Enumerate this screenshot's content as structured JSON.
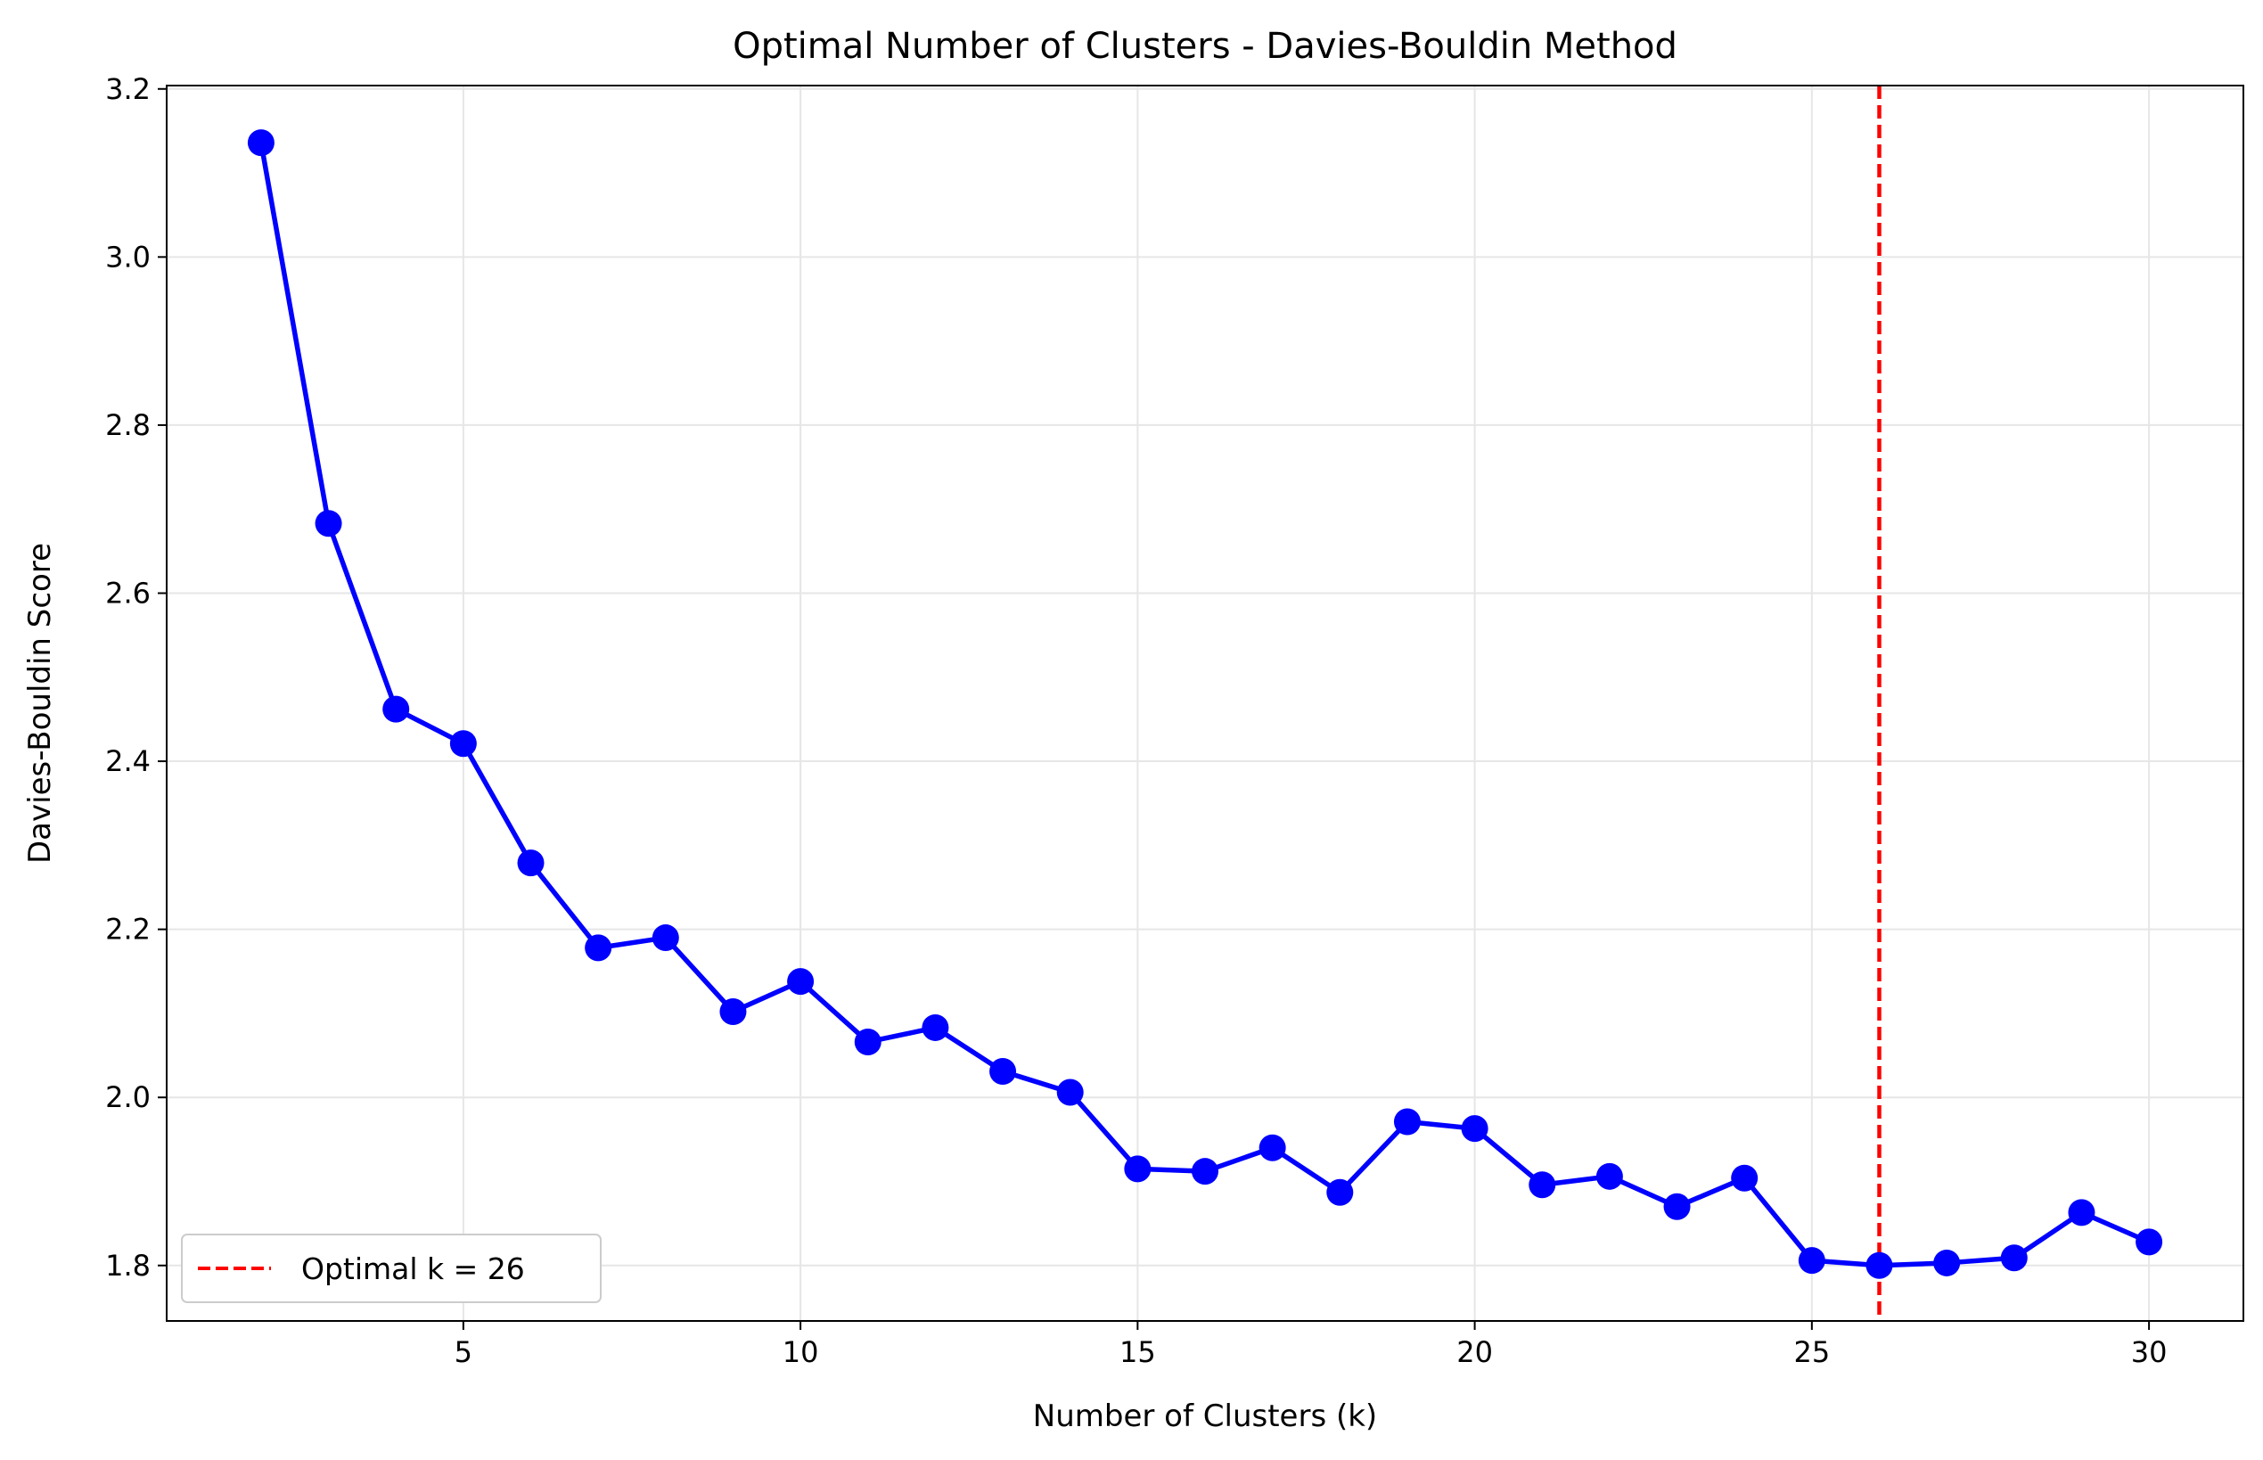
{
  "chart_data": {
    "type": "line",
    "title": "Optimal Number of Clusters - Davies-Bouldin Method",
    "xlabel": "Number of Clusters (k)",
    "ylabel": "Davies-Bouldin Score",
    "xlim": [
      0.6,
      31.4
    ],
    "ylim": [
      1.734,
      3.204
    ],
    "xticks": [
      5,
      10,
      15,
      20,
      25,
      30
    ],
    "yticks": [
      1.8,
      2.0,
      2.2,
      2.4,
      2.6,
      2.8,
      3.0,
      3.2
    ],
    "xtick_labels": [
      "5",
      "10",
      "15",
      "20",
      "25",
      "30"
    ],
    "ytick_labels": [
      "1.8",
      "2.0",
      "2.2",
      "2.4",
      "2.6",
      "2.8",
      "3.0",
      "3.2"
    ],
    "grid": true,
    "legend_position": "lower-left",
    "series": [
      {
        "color": "#0000ff",
        "marker": "circle",
        "x": [
          2,
          3,
          4,
          5,
          6,
          7,
          8,
          9,
          10,
          11,
          12,
          13,
          14,
          15,
          16,
          17,
          18,
          19,
          20,
          21,
          22,
          23,
          24,
          25,
          26,
          27,
          28,
          29,
          30
        ],
        "y": [
          3.136,
          2.683,
          2.462,
          2.421,
          2.279,
          2.178,
          2.19,
          2.102,
          2.138,
          2.066,
          2.083,
          2.031,
          2.006,
          1.915,
          1.912,
          1.94,
          1.887,
          1.971,
          1.963,
          1.896,
          1.906,
          1.87,
          1.904,
          1.806,
          1.8,
          1.803,
          1.809,
          1.863,
          1.828
        ]
      }
    ],
    "vline": {
      "x": 26,
      "color": "#ff0000",
      "style": "dashed",
      "label": "Optimal k = 26"
    }
  }
}
